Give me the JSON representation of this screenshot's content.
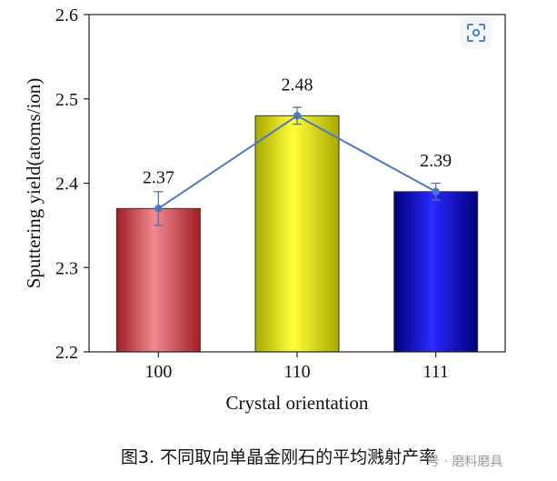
{
  "chart_data": {
    "type": "bar",
    "categories": [
      "100",
      "110",
      "111"
    ],
    "values": [
      2.37,
      2.48,
      2.39
    ],
    "data_labels": [
      "2.37",
      "2.48",
      "2.39"
    ],
    "error": [
      0.02,
      0.01,
      0.01
    ],
    "bar_colors": [
      "#e8707a",
      "#f5f50d",
      "#1c1ce6"
    ],
    "line_color": "#4a78c8",
    "xlabel": "Crystal orientation",
    "ylabel": "Sputtering yield(atoms/ion)",
    "ylim": [
      2.2,
      2.6
    ],
    "yticks": [
      2.2,
      2.3,
      2.4,
      2.5,
      2.6
    ],
    "ytick_labels": [
      "2.2",
      "2.3",
      "2.4",
      "2.5",
      "2.6"
    ],
    "grid": false,
    "overlay_line": true
  },
  "caption": "图3. 不同取向单晶金刚石的平均溅射产率",
  "watermark": "号 · 磨料磨具",
  "icons": {
    "scan": "scan-icon"
  }
}
